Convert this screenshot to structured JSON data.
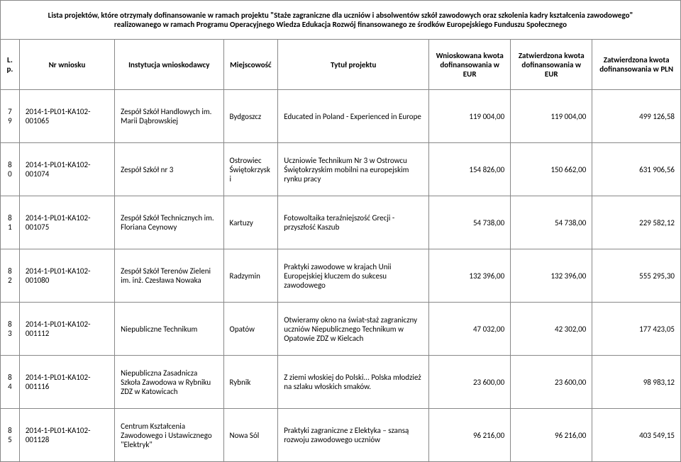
{
  "title": "Lista projektów, które otrzymały dofinansowanie w ramach projektu \"Staże zagraniczne dla uczniów i absolwentów szkół zawodowych oraz szkolenia kadry kształcenia zawodowego\" realizowanego w ramach Programu Operacyjnego Wiedza Edukacja Rozwój finansowanego ze środków Europejskiego Funduszu Społecznego",
  "headers": {
    "lp": "L.p.",
    "nr": "Nr wniosku",
    "inst": "Instytucja wnioskodawcy",
    "loc": "Miejscowość",
    "tit": "Tytuł projektu",
    "eur1": "Wnioskowana kwota dofinansowania w EUR",
    "eur2": "Zatwierdzona kwota dofinansowania w EUR",
    "pln": "Zatwierdzona kwota dofinansowania w PLN"
  },
  "rows": [
    {
      "lp": "79",
      "nr": "2014-1-PL01-KA102-001065",
      "inst": "Zespół Szkół Handlowych im. Marii Dąbrowskiej",
      "loc": "Bydgoszcz",
      "tit": "Educated in Poland - Experienced in Europe",
      "eur1": "119 004,00",
      "eur2": "119 004,00",
      "pln": "499 126,58"
    },
    {
      "lp": "80",
      "nr": "2014-1-PL01-KA102-001074",
      "inst": "Zespół Szkół nr 3",
      "loc": "Ostrowiec Świętokrzyski",
      "tit": "Uczniowie Technikum Nr 3 w Ostrowcu Świętokrzyskim mobilni na europejskim rynku pracy",
      "eur1": "154 826,00",
      "eur2": "150 662,00",
      "pln": "631 906,56"
    },
    {
      "lp": "81",
      "nr": "2014-1-PL01-KA102-001075",
      "inst": "Zespół Szkół Technicznych im. Floriana Ceynowy",
      "loc": "Kartuzy",
      "tit": "Fotowoltaika teraźniejszość Grecji - przyszłość Kaszub",
      "eur1": "54 738,00",
      "eur2": "54 738,00",
      "pln": "229 582,12"
    },
    {
      "lp": "82",
      "nr": "2014-1-PL01-KA102-001080",
      "inst": "Zespół Szkół Terenów Zieleni im. inż. Czesława Nowaka",
      "loc": "Radzymin",
      "tit": "Praktyki zawodowe w krajach Unii Europejskiej kluczem do sukcesu zawodowego",
      "eur1": "132 396,00",
      "eur2": "132 396,00",
      "pln": "555 295,30"
    },
    {
      "lp": "83",
      "nr": "2014-1-PL01-KA102-001112",
      "inst": "Niepubliczne Technikum",
      "loc": "Opatów",
      "tit": "Otwieramy okno na świat-staż zagraniczny uczniów Niepublicznego Technikum w Opatowie ZDZ w Kielcach",
      "eur1": "47 032,00",
      "eur2": "42 302,00",
      "pln": "177 423,05"
    },
    {
      "lp": "84",
      "nr": "2014-1-PL01-KA102-001116",
      "inst": "Niepubliczna Zasadnicza Szkoła Zawodowa w Rybniku ZDZ w Katowicach",
      "loc": "Rybnik",
      "tit": "Z ziemi włoskiej do Polski... Polska młodzież na szlaku włoskich smaków.",
      "eur1": "23 600,00",
      "eur2": "23 600,00",
      "pln": "98 983,12"
    },
    {
      "lp": "85",
      "nr": "2014-1-PL01-KA102-001128",
      "inst": "Centrum Kształcenia Zawodowego i Ustawicznego \"Elektryk\"",
      "loc": "Nowa Sól",
      "tit": "Praktyki zagraniczne z Elektyka – szansą rozwoju zawodowego uczniów",
      "eur1": "96 216,00",
      "eur2": "96 216,00",
      "pln": "403 549,15"
    }
  ]
}
